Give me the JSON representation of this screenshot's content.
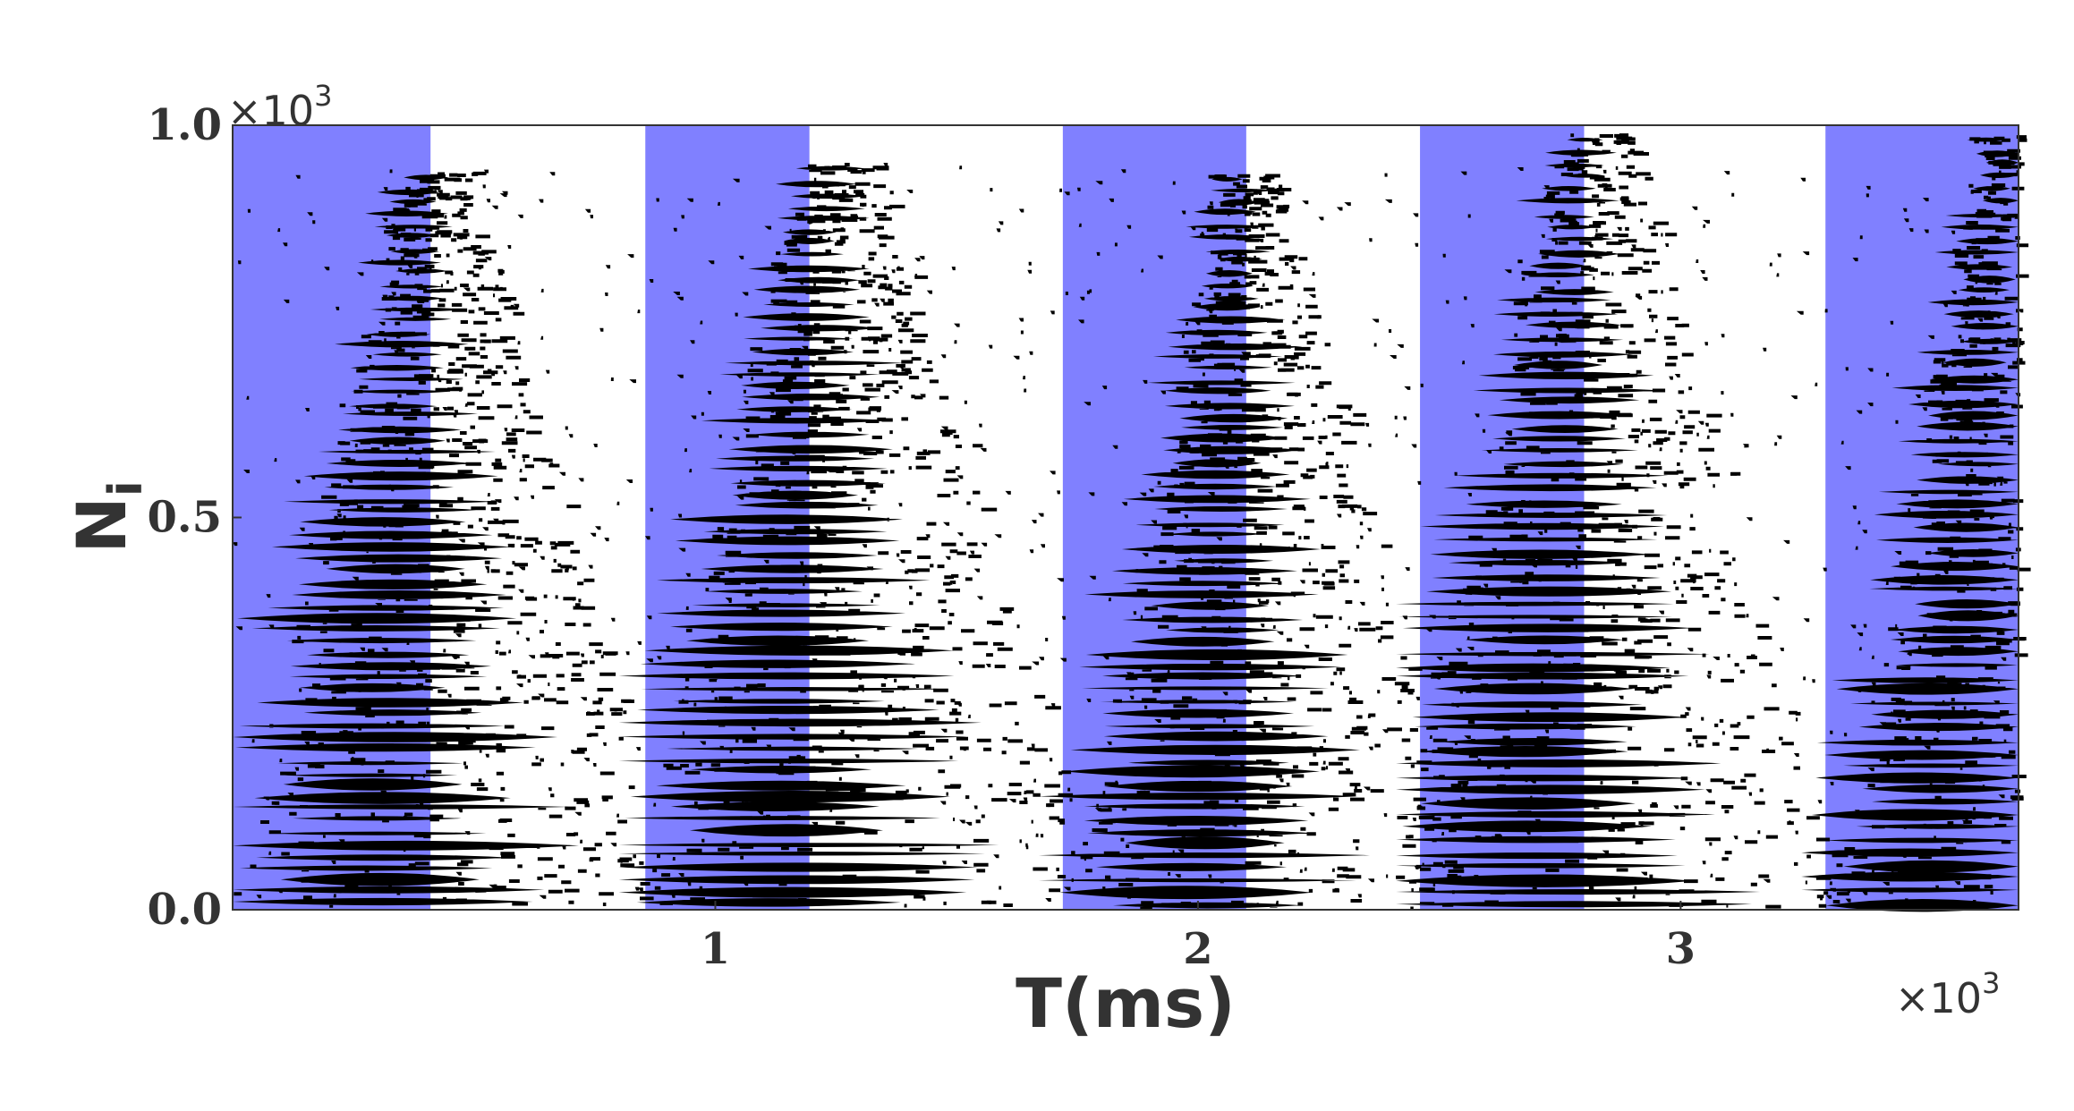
{
  "chart_data": {
    "type": "scatter",
    "title": "",
    "xlabel": "T(ms)",
    "ylabel": "N",
    "ylabel_subscript": "i",
    "x_multiplier": "×10",
    "x_multiplier_exp": "3",
    "y_multiplier": "×10",
    "y_multiplier_exp": "3",
    "xlim": [
      0,
      3.7
    ],
    "ylim": [
      0,
      1.0
    ],
    "x_ticks": [
      {
        "value": 1,
        "label": "1"
      },
      {
        "value": 2,
        "label": "2"
      },
      {
        "value": 3,
        "label": "3"
      }
    ],
    "y_ticks": [
      {
        "value": 0.0,
        "label": "0.0"
      },
      {
        "value": 0.5,
        "label": "0.5"
      },
      {
        "value": 1.0,
        "label": "1.0"
      }
    ],
    "shaded_intervals": [
      [
        0.0,
        0.41
      ],
      [
        0.855,
        1.195
      ],
      [
        1.72,
        2.1
      ],
      [
        2.46,
        2.8
      ],
      [
        3.3,
        3.7
      ]
    ],
    "shade_color": "#8080ff",
    "point_color": "#000000",
    "grid": false,
    "legend": "none",
    "waves": [
      {
        "t0": 0.0,
        "t1": 0.85,
        "peak_t": 0.38,
        "peak_n": 0.94,
        "width": 0.38
      },
      {
        "t0": 0.85,
        "t1": 1.72,
        "peak_t": 1.22,
        "peak_n": 0.95,
        "width": 0.42
      },
      {
        "t0": 1.72,
        "t1": 2.46,
        "peak_t": 2.08,
        "peak_n": 0.94,
        "width": 0.34
      },
      {
        "t0": 2.46,
        "t1": 3.3,
        "peak_t": 2.78,
        "peak_n": 0.99,
        "width": 0.4
      },
      {
        "t0": 3.3,
        "t1": 3.7,
        "peak_t": 3.65,
        "peak_n": 0.99,
        "width": 0.32
      }
    ]
  }
}
